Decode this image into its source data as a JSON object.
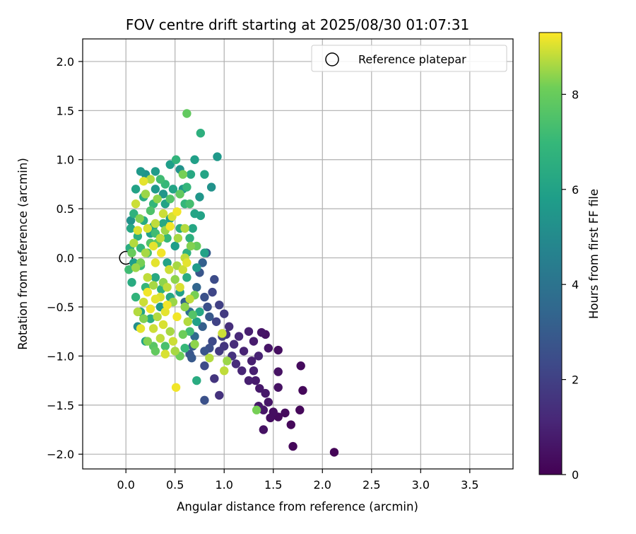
{
  "chart_data": {
    "type": "scatter",
    "title": "FOV centre drift starting at 2025/08/30 01:07:31",
    "xlabel": "Angular distance from reference (arcmin)",
    "ylabel": "Rotation from reference (arcmin)",
    "xlim": [
      -0.44,
      3.94
    ],
    "ylim": [
      -2.15,
      2.23
    ],
    "xticks": [
      0.0,
      0.5,
      1.0,
      1.5,
      2.0,
      2.5,
      3.0,
      3.5
    ],
    "xtick_labels": [
      "0.0",
      "0.5",
      "1.0",
      "1.5",
      "2.0",
      "2.5",
      "3.0",
      "3.5"
    ],
    "yticks": [
      -2.0,
      -1.5,
      -1.0,
      -0.5,
      0.0,
      0.5,
      1.0,
      1.5,
      2.0
    ],
    "ytick_labels": [
      "−2.0",
      "−1.5",
      "−1.0",
      "−0.5",
      "0.0",
      "0.5",
      "1.0",
      "1.5",
      "2.0"
    ],
    "grid": true,
    "legend": {
      "placement": "top-right",
      "entries": [
        "Reference platepar"
      ]
    },
    "colorbar": {
      "label": "Hours from first FF file",
      "range": [
        0,
        9.3
      ],
      "ticks": [
        0,
        2,
        4,
        6,
        8
      ],
      "tick_labels": [
        "0",
        "2",
        "4",
        "6",
        "8"
      ],
      "colormap": "viridis"
    },
    "reference_point": {
      "x": 0.0,
      "y": 0.0
    },
    "series": [
      {
        "points_xyc": [
          [
            0.51,
            1.0,
            6.8
          ],
          [
            0.35,
            0.8,
            7.2
          ],
          [
            0.18,
            0.62,
            6.5
          ],
          [
            0.25,
            0.48,
            7.5
          ],
          [
            0.28,
            0.32,
            6.2
          ],
          [
            0.4,
            0.55,
            6.0
          ],
          [
            0.45,
            0.4,
            5.7
          ],
          [
            0.55,
            0.3,
            6.4
          ],
          [
            0.6,
            0.55,
            6.9
          ],
          [
            0.32,
            0.15,
            7.8
          ],
          [
            0.22,
            0.05,
            7.4
          ],
          [
            0.12,
            0.22,
            6.6
          ],
          [
            0.15,
            -0.08,
            7.1
          ],
          [
            0.2,
            -0.3,
            6.9
          ],
          [
            0.3,
            -0.2,
            6.3
          ],
          [
            0.42,
            -0.05,
            6.0
          ],
          [
            0.5,
            0.12,
            5.8
          ],
          [
            0.65,
            0.2,
            6.6
          ],
          [
            0.7,
            0.45,
            6.1
          ],
          [
            0.75,
            0.62,
            5.5
          ],
          [
            0.66,
            0.85,
            6.3
          ],
          [
            0.55,
            0.9,
            5.3
          ],
          [
            0.45,
            0.95,
            5.8
          ],
          [
            0.3,
            0.7,
            5.6
          ],
          [
            0.2,
            0.85,
            5.4
          ],
          [
            0.1,
            0.7,
            6.0
          ],
          [
            0.08,
            0.45,
            6.7
          ],
          [
            0.05,
            0.3,
            6.2
          ],
          [
            0.04,
            0.1,
            6.5
          ],
          [
            0.03,
            -0.12,
            7.2
          ],
          [
            0.06,
            -0.25,
            6.4
          ],
          [
            0.1,
            -0.4,
            6.8
          ],
          [
            0.15,
            -0.55,
            6.1
          ],
          [
            0.25,
            -0.62,
            6.5
          ],
          [
            0.35,
            -0.5,
            5.6
          ],
          [
            0.45,
            -0.4,
            6.2
          ],
          [
            0.55,
            -0.35,
            5.9
          ],
          [
            0.62,
            -0.2,
            6.4
          ],
          [
            0.72,
            -0.1,
            5.7
          ],
          [
            0.8,
            0.05,
            6.0
          ],
          [
            0.62,
            0.05,
            6.7
          ],
          [
            0.38,
            0.35,
            6.3
          ],
          [
            0.48,
            0.7,
            6.1
          ],
          [
            0.25,
            0.25,
            5.9
          ],
          [
            0.18,
            0.38,
            6.4
          ],
          [
            0.36,
            -0.32,
            6.6
          ],
          [
            0.28,
            0.55,
            6.9
          ],
          [
            0.58,
            0.7,
            5.6
          ],
          [
            0.68,
            0.3,
            6.2
          ],
          [
            0.42,
            0.2,
            7.0
          ],
          [
            0.62,
            1.47,
            7.9
          ],
          [
            0.76,
            1.27,
            6.6
          ],
          [
            0.93,
            1.03,
            5.6
          ],
          [
            0.87,
            0.72,
            5.3
          ],
          [
            0.76,
            0.43,
            6.0
          ],
          [
            0.8,
            0.85,
            6.1
          ],
          [
            0.7,
            1.0,
            5.9
          ],
          [
            0.38,
            0.65,
            5.5
          ],
          [
            0.3,
            0.88,
            5.7
          ],
          [
            0.15,
            0.88,
            5.6
          ],
          [
            0.9,
            -0.22,
            2.4
          ],
          [
            0.82,
            0.05,
            3.0
          ],
          [
            0.78,
            -0.05,
            3.2
          ],
          [
            0.75,
            -0.15,
            2.8
          ],
          [
            0.72,
            -0.3,
            3.4
          ],
          [
            0.8,
            -0.4,
            2.6
          ],
          [
            0.88,
            -0.35,
            2.2
          ],
          [
            0.95,
            -0.48,
            2.0
          ],
          [
            1.0,
            -0.57,
            1.8
          ],
          [
            0.85,
            -0.6,
            2.9
          ],
          [
            0.78,
            -0.7,
            3.1
          ],
          [
            0.7,
            -0.8,
            3.6
          ],
          [
            0.65,
            -0.55,
            3.8
          ],
          [
            0.6,
            -0.45,
            3.3
          ],
          [
            0.83,
            -0.5,
            2.5
          ],
          [
            0.92,
            -0.65,
            2.1
          ],
          [
            0.98,
            -0.8,
            1.9
          ],
          [
            0.88,
            -0.85,
            2.3
          ],
          [
            0.8,
            -0.95,
            2.7
          ],
          [
            0.68,
            -0.9,
            3.0
          ],
          [
            1.05,
            -0.7,
            1.4
          ],
          [
            1.15,
            -0.8,
            1.2
          ],
          [
            1.25,
            -0.75,
            0.9
          ],
          [
            1.1,
            -0.88,
            1.3
          ],
          [
            1.2,
            -0.95,
            1.0
          ],
          [
            1.3,
            -0.85,
            0.8
          ],
          [
            1.38,
            -0.76,
            0.6
          ],
          [
            1.42,
            -0.78,
            0.5
          ],
          [
            1.45,
            -0.92,
            0.6
          ],
          [
            1.55,
            -0.94,
            0.4
          ],
          [
            1.28,
            -1.05,
            0.9
          ],
          [
            1.35,
            -1.0,
            1.0
          ],
          [
            1.18,
            -1.15,
            1.1
          ],
          [
            1.12,
            -1.08,
            1.3
          ],
          [
            1.08,
            -1.0,
            1.5
          ],
          [
            1.0,
            -0.9,
            1.6
          ],
          [
            0.95,
            -0.95,
            1.7
          ],
          [
            1.02,
            -0.78,
            1.5
          ],
          [
            1.25,
            -1.25,
            0.9
          ],
          [
            1.32,
            -1.25,
            0.8
          ],
          [
            1.36,
            -1.33,
            0.7
          ],
          [
            1.42,
            -1.38,
            0.7
          ],
          [
            1.55,
            -1.32,
            0.5
          ],
          [
            1.55,
            -1.16,
            0.5
          ],
          [
            1.4,
            -1.55,
            0.6
          ],
          [
            1.45,
            -1.47,
            0.6
          ],
          [
            1.5,
            -1.57,
            0.4
          ],
          [
            1.55,
            -1.62,
            0.3
          ],
          [
            1.62,
            -1.58,
            0.3
          ],
          [
            1.47,
            -1.63,
            0.4
          ],
          [
            1.4,
            -1.75,
            0.5
          ],
          [
            1.68,
            -1.7,
            0.2
          ],
          [
            1.7,
            -1.92,
            0.2
          ],
          [
            1.77,
            -1.55,
            0.2
          ],
          [
            1.78,
            -1.1,
            0.3
          ],
          [
            1.8,
            -1.35,
            0.2
          ],
          [
            2.12,
            -1.98,
            0.1
          ],
          [
            1.35,
            -1.51,
            0.7
          ],
          [
            1.3,
            -1.15,
            0.9
          ],
          [
            0.9,
            -1.23,
            1.6
          ],
          [
            0.95,
            -1.4,
            1.5
          ],
          [
            0.8,
            -1.45,
            2.6
          ],
          [
            0.8,
            -1.1,
            2.4
          ],
          [
            0.85,
            -0.92,
            2.5
          ],
          [
            0.65,
            -0.98,
            2.8
          ],
          [
            0.67,
            -1.02,
            2.9
          ],
          [
            0.72,
            -1.25,
            6.4
          ],
          [
            0.51,
            -1.32,
            9.2
          ],
          [
            1.33,
            -1.55,
            8.2
          ],
          [
            1.0,
            -1.15,
            8.8
          ],
          [
            1.03,
            -1.05,
            8.5
          ],
          [
            0.98,
            -0.77,
            8.9
          ],
          [
            0.85,
            -1.02,
            8.7
          ],
          [
            0.7,
            -0.88,
            8.4
          ],
          [
            0.55,
            -1.0,
            8.1
          ],
          [
            0.5,
            -0.95,
            8.6
          ],
          [
            0.4,
            -0.98,
            9.0
          ],
          [
            0.35,
            -0.82,
            8.8
          ],
          [
            0.3,
            -0.95,
            7.9
          ],
          [
            0.22,
            -0.85,
            8.3
          ],
          [
            0.15,
            -0.72,
            9.1
          ],
          [
            0.12,
            -0.55,
            8.7
          ],
          [
            0.18,
            -0.45,
            8.9
          ],
          [
            0.22,
            -0.35,
            9.2
          ],
          [
            0.28,
            -0.28,
            8.6
          ],
          [
            0.35,
            -0.4,
            9.0
          ],
          [
            0.42,
            -0.3,
            8.8
          ],
          [
            0.5,
            -0.22,
            8.4
          ],
          [
            0.58,
            -0.12,
            8.9
          ],
          [
            0.62,
            -0.05,
            9.1
          ],
          [
            0.66,
            0.12,
            8.3
          ],
          [
            0.72,
            0.12,
            8.0
          ],
          [
            0.6,
            0.3,
            8.7
          ],
          [
            0.52,
            0.47,
            9.2
          ],
          [
            0.47,
            0.42,
            9.0
          ],
          [
            0.4,
            0.28,
            8.5
          ],
          [
            0.35,
            0.2,
            8.8
          ],
          [
            0.28,
            0.12,
            9.1
          ],
          [
            0.2,
            0.05,
            8.6
          ],
          [
            0.15,
            -0.05,
            8.2
          ],
          [
            0.12,
            0.28,
            9.0
          ],
          [
            0.1,
            0.55,
            8.9
          ],
          [
            0.2,
            0.65,
            8.5
          ],
          [
            0.18,
            0.78,
            9.1
          ],
          [
            0.25,
            0.8,
            8.7
          ],
          [
            0.32,
            0.6,
            8.4
          ],
          [
            0.38,
            0.45,
            8.9
          ],
          [
            0.45,
            0.32,
            9.2
          ],
          [
            0.53,
            0.2,
            8.6
          ],
          [
            0.6,
            0.0,
            8.8
          ],
          [
            0.55,
            -0.3,
            9.0
          ],
          [
            0.48,
            -0.45,
            8.5
          ],
          [
            0.4,
            -0.55,
            9.1
          ],
          [
            0.32,
            -0.6,
            8.7
          ],
          [
            0.25,
            -0.52,
            9.2
          ],
          [
            0.18,
            -0.62,
            8.3
          ],
          [
            0.28,
            -0.72,
            8.9
          ],
          [
            0.38,
            -0.68,
            9.0
          ],
          [
            0.45,
            -0.75,
            8.6
          ],
          [
            0.52,
            -0.6,
            9.2
          ],
          [
            0.6,
            -0.5,
            8.4
          ],
          [
            0.65,
            -0.42,
            8.8
          ],
          [
            0.7,
            -0.38,
            8.2
          ],
          [
            0.63,
            -0.65,
            8.7
          ],
          [
            0.58,
            -0.78,
            8.1
          ],
          [
            0.48,
            -0.85,
            8.9
          ],
          [
            0.42,
            -0.48,
            9.2
          ],
          [
            0.3,
            -0.42,
            9.1
          ],
          [
            0.22,
            -0.2,
            8.8
          ],
          [
            0.1,
            -0.1,
            8.5
          ],
          [
            0.06,
            0.05,
            8.0
          ],
          [
            0.08,
            0.15,
            8.7
          ],
          [
            0.14,
            0.4,
            8.3
          ],
          [
            0.22,
            0.3,
            9.0
          ],
          [
            0.3,
            0.35,
            8.8
          ],
          [
            0.36,
            0.05,
            9.2
          ],
          [
            0.44,
            -0.12,
            8.9
          ],
          [
            0.52,
            -0.08,
            8.6
          ],
          [
            0.3,
            -0.05,
            9.1
          ],
          [
            0.38,
            -0.25,
            8.4
          ],
          [
            0.25,
            0.15,
            7.6
          ],
          [
            0.3,
            0.25,
            7.2
          ],
          [
            0.45,
            0.6,
            7.6
          ],
          [
            0.55,
            0.65,
            7.9
          ],
          [
            0.65,
            0.55,
            7.3
          ],
          [
            0.62,
            0.72,
            6.9
          ],
          [
            0.4,
            0.75,
            7.0
          ],
          [
            0.58,
            0.85,
            8.2
          ],
          [
            0.75,
            -0.55,
            6.2
          ],
          [
            0.72,
            -0.65,
            5.9
          ],
          [
            0.12,
            -0.7,
            5.2
          ],
          [
            0.2,
            -0.85,
            6.0
          ],
          [
            0.28,
            -0.9,
            7.7
          ],
          [
            0.4,
            -0.9,
            7.4
          ],
          [
            0.6,
            -0.92,
            7.0
          ],
          [
            0.65,
            -0.75,
            7.2
          ],
          [
            0.68,
            -0.58,
            7.6
          ],
          [
            0.05,
            0.38,
            5.3
          ],
          [
            0.08,
            -0.05,
            5.8
          ],
          [
            0.15,
            0.1,
            6.9
          ]
        ]
      }
    ]
  }
}
